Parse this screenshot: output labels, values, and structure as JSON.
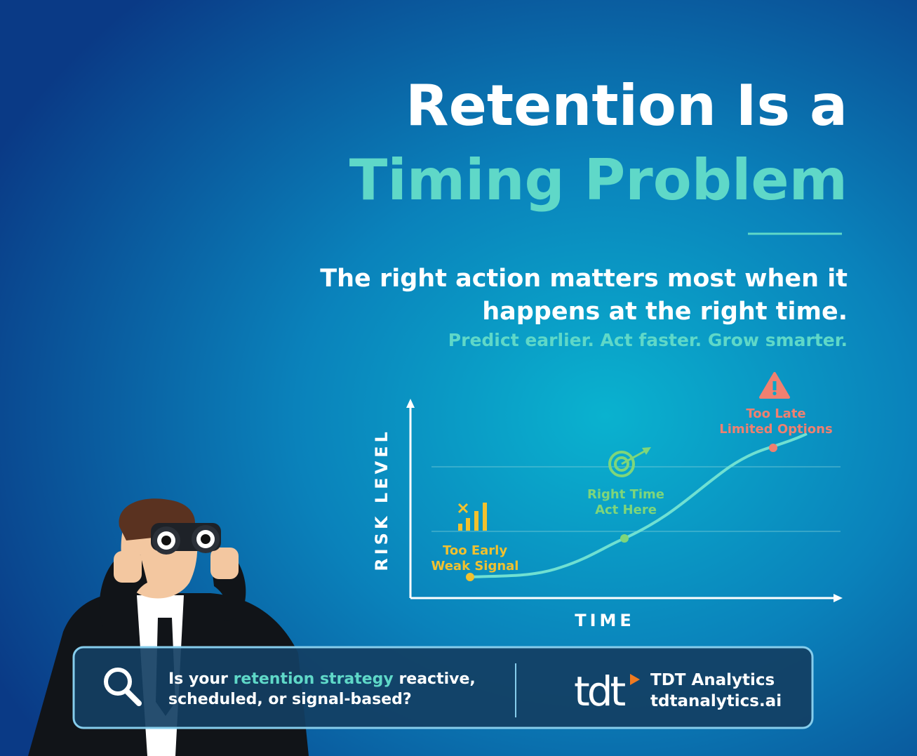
{
  "header": {
    "title_line1": "Retention Is a",
    "title_line2": "Timing Problem",
    "subtitle_line1": "The right action matters most when it",
    "subtitle_line2": "happens at the right time.",
    "tagline": "Predict earlier. Act faster. Grow smarter."
  },
  "diagram": {
    "y_axis_label": "RISK LEVEL",
    "x_axis_label": "TIME",
    "stages": [
      {
        "line1": "Too Early",
        "line2": "Weak Signal"
      },
      {
        "line1": "Right Time",
        "line2": "Act Here"
      },
      {
        "line1": "Too Late",
        "line2": "Limited Options"
      }
    ]
  },
  "footer": {
    "line1_before": "Is your ",
    "line1_highlight": "retention strategy",
    "line1_after": " reactive,",
    "line2": "scheduled, or signal-based?",
    "logo_text": "tdt",
    "brand_name": "TDT Analytics",
    "website": "tdtanalytics.ai"
  }
}
